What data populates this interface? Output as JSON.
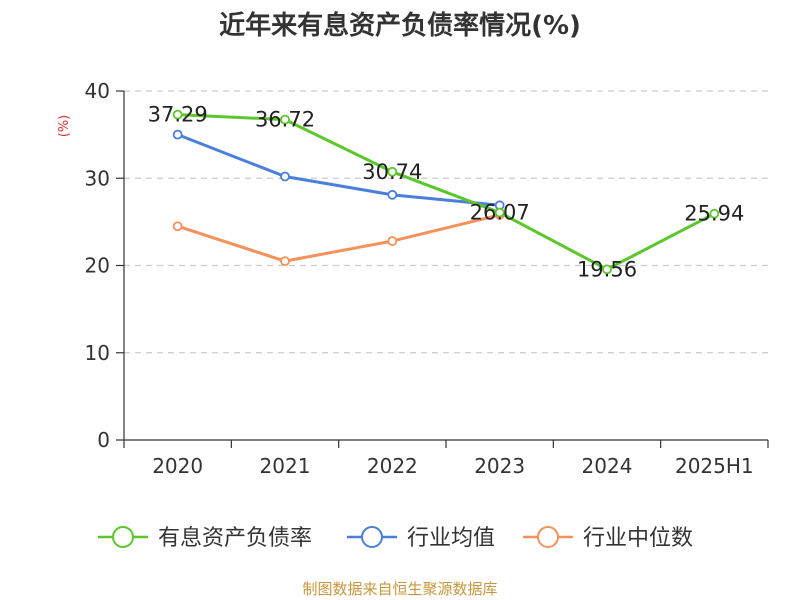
{
  "chart_data": {
    "type": "line",
    "title": "近年来有息资产负债率情况(%)",
    "ylabel": "(%)",
    "xlabel": "",
    "categories": [
      "2020",
      "2021",
      "2022",
      "2023",
      "2024",
      "2025H1"
    ],
    "ylim": [
      0,
      40
    ],
    "yticks": [
      0,
      10,
      20,
      30,
      40
    ],
    "grid": true,
    "legend_position": "bottom",
    "series": [
      {
        "name": "有息资产负债率",
        "color": "#5cc72c",
        "values": [
          37.29,
          36.72,
          30.74,
          26.07,
          19.56,
          25.94
        ],
        "labels": [
          "37.29",
          "36.72",
          "30.74",
          "26.07",
          "19.56",
          "25.94"
        ]
      },
      {
        "name": "行业均值",
        "color": "#4b7fdc",
        "values": [
          35.0,
          30.2,
          28.1,
          26.9,
          null,
          null
        ]
      },
      {
        "name": "行业中位数",
        "color": "#f5915a",
        "values": [
          24.5,
          20.5,
          22.8,
          25.8,
          null,
          null
        ]
      }
    ],
    "source": "制图数据来自恒生聚源数据库"
  }
}
